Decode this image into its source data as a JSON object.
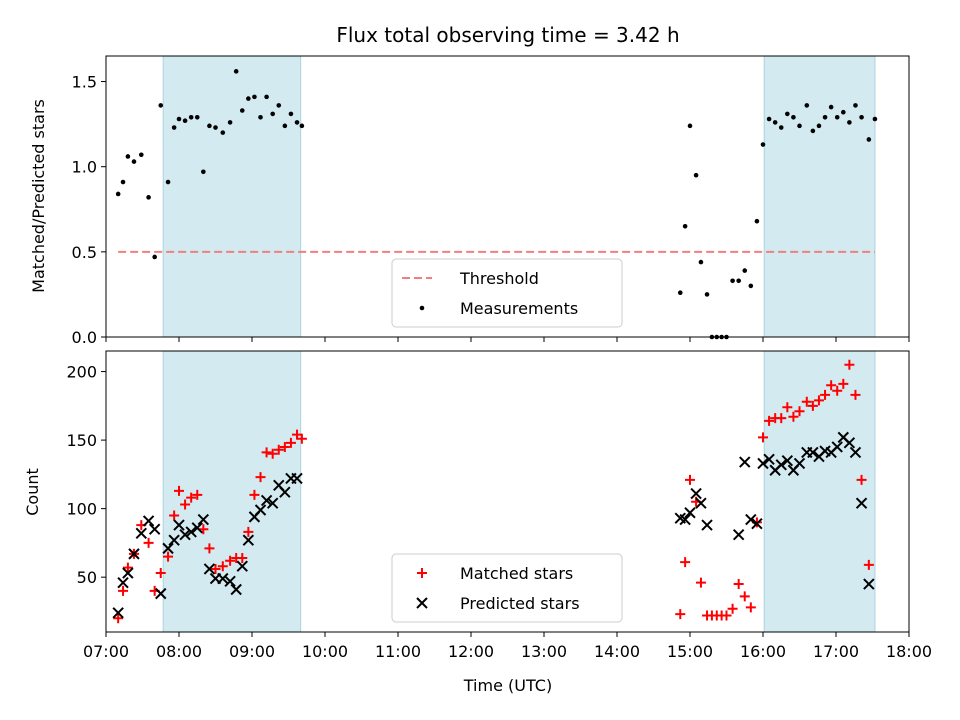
{
  "chart_data": [
    {
      "type": "scatter",
      "title": "Flux total observing time = 3.42 h",
      "xlabel": "",
      "ylabel": "Matched/Predicted stars",
      "xlim": [
        "07:00",
        "18:00"
      ],
      "ylim": [
        0,
        1.65
      ],
      "yticks": [
        "0.0",
        "0.5",
        "1.0",
        "1.5"
      ],
      "shaded_intervals": [
        [
          "07:47",
          "09:40"
        ],
        [
          "16:01",
          "17:32"
        ]
      ],
      "threshold": {
        "name": "Threshold",
        "y": 0.5,
        "x_start": "07:10",
        "x_end": "17:32",
        "color": "#f08080"
      },
      "series": [
        {
          "name": "Measurements",
          "color": "#000000",
          "points": [
            [
              "07:10",
              0.84
            ],
            [
              "07:14",
              0.91
            ],
            [
              "07:18",
              1.06
            ],
            [
              "07:23",
              1.03
            ],
            [
              "07:29",
              1.07
            ],
            [
              "07:35",
              0.82
            ],
            [
              "07:40",
              0.47
            ],
            [
              "07:45",
              1.36
            ],
            [
              "07:51",
              0.91
            ],
            [
              "07:56",
              1.23
            ],
            [
              "08:00",
              1.28
            ],
            [
              "08:05",
              1.27
            ],
            [
              "08:10",
              1.29
            ],
            [
              "08:15",
              1.29
            ],
            [
              "08:20",
              0.97
            ],
            [
              "08:25",
              1.24
            ],
            [
              "08:30",
              1.23
            ],
            [
              "08:36",
              1.2
            ],
            [
              "08:42",
              1.26
            ],
            [
              "08:47",
              1.56
            ],
            [
              "08:52",
              1.33
            ],
            [
              "08:57",
              1.4
            ],
            [
              "09:02",
              1.41
            ],
            [
              "09:07",
              1.29
            ],
            [
              "09:12",
              1.41
            ],
            [
              "09:17",
              1.31
            ],
            [
              "09:22",
              1.36
            ],
            [
              "09:27",
              1.24
            ],
            [
              "09:32",
              1.31
            ],
            [
              "09:37",
              1.26
            ],
            [
              "09:41",
              1.24
            ],
            [
              "14:52",
              0.26
            ],
            [
              "14:56",
              0.65
            ],
            [
              "15:00",
              1.24
            ],
            [
              "15:05",
              0.95
            ],
            [
              "15:09",
              0.44
            ],
            [
              "15:14",
              0.25
            ],
            [
              "15:18",
              0.0
            ],
            [
              "15:22",
              0.0
            ],
            [
              "15:26",
              0.0
            ],
            [
              "15:30",
              0.0
            ],
            [
              "15:35",
              0.33
            ],
            [
              "15:40",
              0.33
            ],
            [
              "15:45",
              0.39
            ],
            [
              "15:50",
              0.3
            ],
            [
              "15:55",
              0.68
            ],
            [
              "16:00",
              1.13
            ],
            [
              "16:05",
              1.28
            ],
            [
              "16:10",
              1.26
            ],
            [
              "16:15",
              1.23
            ],
            [
              "16:20",
              1.31
            ],
            [
              "16:25",
              1.29
            ],
            [
              "16:30",
              1.24
            ],
            [
              "16:36",
              1.36
            ],
            [
              "16:41",
              1.21
            ],
            [
              "16:46",
              1.24
            ],
            [
              "16:51",
              1.29
            ],
            [
              "16:56",
              1.35
            ],
            [
              "17:01",
              1.29
            ],
            [
              "17:06",
              1.32
            ],
            [
              "17:11",
              1.26
            ],
            [
              "17:16",
              1.36
            ],
            [
              "17:21",
              1.29
            ],
            [
              "17:27",
              1.16
            ],
            [
              "17:32",
              1.28
            ]
          ]
        }
      ],
      "legend": {
        "placement": "lower-center",
        "entries": [
          "Threshold",
          "Measurements"
        ]
      }
    },
    {
      "type": "scatter",
      "title": "",
      "xlabel": "Time (UTC)",
      "ylabel": "Count",
      "xlim": [
        "07:00",
        "18:00"
      ],
      "ylim": [
        10,
        215
      ],
      "yticks": [
        "50",
        "100",
        "150",
        "200"
      ],
      "xticks": [
        "07:00",
        "08:00",
        "09:00",
        "10:00",
        "11:00",
        "12:00",
        "13:00",
        "14:00",
        "15:00",
        "16:00",
        "17:00",
        "18:00"
      ],
      "shaded_intervals": [
        [
          "07:47",
          "09:40"
        ],
        [
          "16:01",
          "17:32"
        ]
      ],
      "series": [
        {
          "name": "Matched stars",
          "marker": "plus",
          "color": "#ff0000",
          "points": [
            [
              "07:10",
              20
            ],
            [
              "07:14",
              40
            ],
            [
              "07:18",
              57
            ],
            [
              "07:23",
              67
            ],
            [
              "07:29",
              88
            ],
            [
              "07:35",
              75
            ],
            [
              "07:40",
              40
            ],
            [
              "07:45",
              53
            ],
            [
              "07:51",
              65
            ],
            [
              "07:56",
              95
            ],
            [
              "08:00",
              113
            ],
            [
              "08:05",
              103
            ],
            [
              "08:10",
              108
            ],
            [
              "08:15",
              110
            ],
            [
              "08:20",
              85
            ],
            [
              "08:25",
              71
            ],
            [
              "08:30",
              56
            ],
            [
              "08:36",
              58
            ],
            [
              "08:42",
              62
            ],
            [
              "08:47",
              64
            ],
            [
              "08:52",
              64
            ],
            [
              "08:57",
              83
            ],
            [
              "09:02",
              110
            ],
            [
              "09:07",
              123
            ],
            [
              "09:12",
              141
            ],
            [
              "09:17",
              140
            ],
            [
              "09:22",
              143
            ],
            [
              "09:27",
              145
            ],
            [
              "09:32",
              148
            ],
            [
              "09:37",
              154
            ],
            [
              "09:41",
              151
            ],
            [
              "14:52",
              23
            ],
            [
              "14:56",
              61
            ],
            [
              "15:00",
              121
            ],
            [
              "15:05",
              105
            ],
            [
              "15:09",
              46
            ],
            [
              "15:14",
              22
            ],
            [
              "15:18",
              22
            ],
            [
              "15:22",
              22
            ],
            [
              "15:26",
              22
            ],
            [
              "15:30",
              22
            ],
            [
              "15:35",
              27
            ],
            [
              "15:40",
              45
            ],
            [
              "15:45",
              36
            ],
            [
              "15:50",
              28
            ],
            [
              "15:55",
              90
            ],
            [
              "16:00",
              152
            ],
            [
              "16:05",
              164
            ],
            [
              "16:10",
              166
            ],
            [
              "16:15",
              166
            ],
            [
              "16:20",
              174
            ],
            [
              "16:25",
              167
            ],
            [
              "16:30",
              171
            ],
            [
              "16:36",
              178
            ],
            [
              "16:41",
              175
            ],
            [
              "16:46",
              179
            ],
            [
              "16:51",
              183
            ],
            [
              "16:56",
              190
            ],
            [
              "17:01",
              186
            ],
            [
              "17:06",
              191
            ],
            [
              "17:11",
              205
            ],
            [
              "17:16",
              183
            ],
            [
              "17:21",
              121
            ],
            [
              "17:27",
              59
            ]
          ]
        },
        {
          "name": "Predicted stars",
          "marker": "x",
          "color": "#000000",
          "points": [
            [
              "07:10",
              24
            ],
            [
              "07:14",
              46
            ],
            [
              "07:18",
              53
            ],
            [
              "07:23",
              67
            ],
            [
              "07:29",
              82
            ],
            [
              "07:35",
              91
            ],
            [
              "07:40",
              85
            ],
            [
              "07:45",
              38
            ],
            [
              "07:51",
              71
            ],
            [
              "07:56",
              77
            ],
            [
              "08:00",
              88
            ],
            [
              "08:05",
              81
            ],
            [
              "08:10",
              83
            ],
            [
              "08:15",
              86
            ],
            [
              "08:20",
              92
            ],
            [
              "08:25",
              56
            ],
            [
              "08:30",
              49
            ],
            [
              "08:36",
              49
            ],
            [
              "08:42",
              47
            ],
            [
              "08:47",
              41
            ],
            [
              "08:52",
              58
            ],
            [
              "08:57",
              77
            ],
            [
              "09:02",
              94
            ],
            [
              "09:07",
              99
            ],
            [
              "09:12",
              106
            ],
            [
              "09:17",
              104
            ],
            [
              "09:22",
              117
            ],
            [
              "09:27",
              112
            ],
            [
              "09:32",
              122
            ],
            [
              "09:37",
              122
            ],
            [
              "14:52",
              93
            ],
            [
              "14:56",
              92
            ],
            [
              "15:00",
              97
            ],
            [
              "15:05",
              111
            ],
            [
              "15:09",
              104
            ],
            [
              "15:14",
              88
            ],
            [
              "15:40",
              81
            ],
            [
              "15:45",
              134
            ],
            [
              "15:50",
              92
            ],
            [
              "15:55",
              89
            ],
            [
              "16:00",
              133
            ],
            [
              "16:05",
              136
            ],
            [
              "16:10",
              128
            ],
            [
              "16:15",
              132
            ],
            [
              "16:20",
              135
            ],
            [
              "16:25",
              128
            ],
            [
              "16:30",
              133
            ],
            [
              "16:36",
              141
            ],
            [
              "16:41",
              141
            ],
            [
              "16:46",
              138
            ],
            [
              "16:51",
              142
            ],
            [
              "16:56",
              141
            ],
            [
              "17:01",
              145
            ],
            [
              "17:06",
              152
            ],
            [
              "17:11",
              148
            ],
            [
              "17:16",
              141
            ],
            [
              "17:21",
              104
            ],
            [
              "17:27",
              45
            ]
          ]
        }
      ],
      "legend": {
        "placement": "lower-center",
        "entries": [
          "Matched stars",
          "Predicted stars"
        ]
      }
    }
  ]
}
